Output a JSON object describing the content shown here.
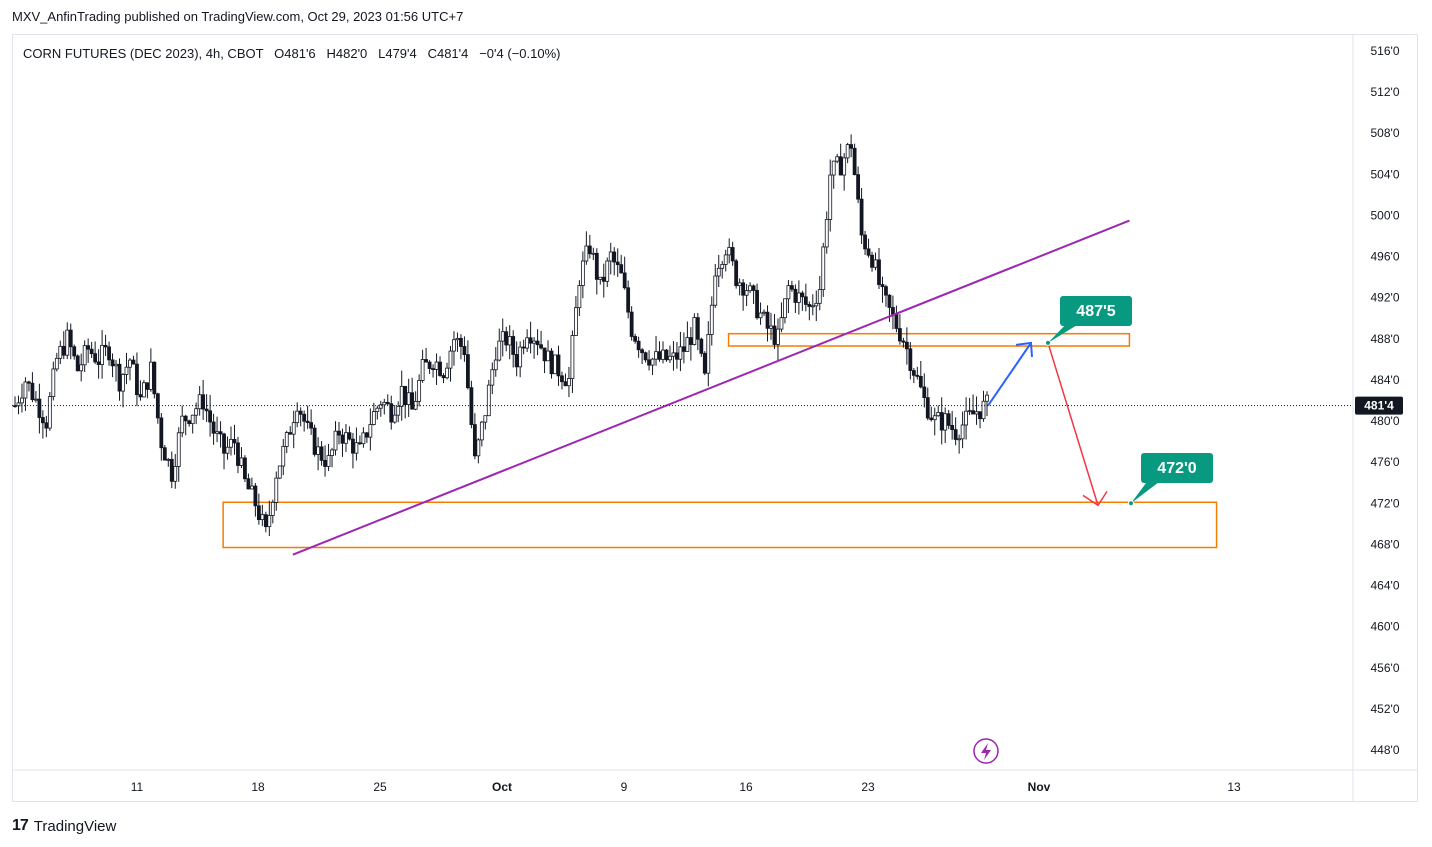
{
  "header": {
    "published": "MXV_AnfinTrading published on TradingView.com, Oct 29, 2023 01:56 UTC+7"
  },
  "footer": {
    "brand": "TradingView"
  },
  "chart_data": {
    "type": "candlestick",
    "legend": "CORN FUTURES (DEC 2023), 4h, CBOT   O481'6   H482'0   L479'4   C481'4   −0'4 (−0.10%)",
    "y_ticks": [
      "516'0",
      "512'0",
      "508'0",
      "504'0",
      "500'0",
      "496'0",
      "492'0",
      "488'0",
      "484'0",
      "480'0",
      "476'0",
      "472'0",
      "468'0",
      "464'0",
      "460'0",
      "456'0",
      "452'0",
      "448'0"
    ],
    "ylim": [
      446.5,
      517.5
    ],
    "x_ticks": [
      "11",
      "18",
      "25",
      "Oct",
      "9",
      "16",
      "23",
      "Nov",
      "13"
    ],
    "last_price_label": "481'4",
    "last_price": 481.5,
    "price_path": [
      [
        0,
        481.5
      ],
      [
        3,
        484
      ],
      [
        6,
        482
      ],
      [
        9,
        480
      ],
      [
        12,
        486
      ],
      [
        15,
        488
      ],
      [
        18,
        485
      ],
      [
        21,
        487
      ],
      [
        24,
        486
      ],
      [
        27,
        487
      ],
      [
        30,
        484
      ],
      [
        33,
        486
      ],
      [
        36,
        482
      ],
      [
        39,
        485
      ],
      [
        42,
        478
      ],
      [
        45,
        475
      ],
      [
        48,
        480
      ],
      [
        51,
        481
      ],
      [
        54,
        482
      ],
      [
        57,
        479
      ],
      [
        60,
        477
      ],
      [
        63,
        478
      ],
      [
        66,
        474
      ],
      [
        69,
        472
      ],
      [
        72,
        469
      ],
      [
        75,
        475
      ],
      [
        78,
        478
      ],
      [
        81,
        482
      ],
      [
        84,
        479
      ],
      [
        87,
        477
      ],
      [
        90,
        476
      ],
      [
        93,
        479
      ],
      [
        96,
        478
      ],
      [
        99,
        477
      ],
      [
        102,
        480
      ],
      [
        105,
        482
      ],
      [
        108,
        481
      ],
      [
        111,
        483
      ],
      [
        114,
        481
      ],
      [
        117,
        485
      ],
      [
        120,
        486
      ],
      [
        123,
        485
      ],
      [
        126,
        488
      ],
      [
        129,
        487
      ],
      [
        132,
        476
      ],
      [
        135,
        481
      ],
      [
        138,
        487
      ],
      [
        141,
        488
      ],
      [
        144,
        486
      ],
      [
        147,
        489
      ],
      [
        150,
        488
      ],
      [
        153,
        486
      ],
      [
        156,
        485
      ],
      [
        159,
        484
      ],
      [
        162,
        494
      ],
      [
        165,
        497
      ],
      [
        168,
        493
      ],
      [
        171,
        496
      ],
      [
        174,
        494
      ],
      [
        177,
        489
      ],
      [
        180,
        487
      ],
      [
        183,
        486
      ],
      [
        186,
        486
      ],
      [
        189,
        486
      ],
      [
        192,
        487
      ],
      [
        195,
        489
      ],
      [
        198,
        484
      ],
      [
        201,
        495
      ],
      [
        204,
        497
      ],
      [
        207,
        494
      ],
      [
        210,
        493
      ],
      [
        213,
        491
      ],
      [
        216,
        489
      ],
      [
        219,
        488
      ],
      [
        222,
        493
      ],
      [
        225,
        492
      ],
      [
        228,
        491
      ],
      [
        231,
        493
      ],
      [
        234,
        504
      ],
      [
        237,
        505
      ],
      [
        240,
        507
      ],
      [
        243,
        498
      ],
      [
        246,
        496
      ],
      [
        249,
        492
      ],
      [
        252,
        490
      ],
      [
        255,
        488
      ],
      [
        258,
        485
      ],
      [
        261,
        482
      ],
      [
        264,
        480
      ],
      [
        267,
        480
      ],
      [
        270,
        479
      ],
      [
        273,
        480
      ],
      [
        276,
        481
      ],
      [
        279,
        481.5
      ]
    ],
    "trendline": {
      "from": [
        "2023-09-20",
        467.0
      ],
      "to": [
        "2023-11-07",
        499.5
      ],
      "color": "#9c27b0"
    },
    "zones": [
      {
        "name": "resistance",
        "from": "2023-10-15",
        "to": "2023-11-07",
        "low": 487.3,
        "high": 488.5,
        "color": "#f57c00"
      },
      {
        "name": "support",
        "from": "2023-09-16",
        "to": "2023-11-12",
        "low": 467.7,
        "high": 472.1,
        "color": "#f57c00"
      }
    ],
    "projection": {
      "up_to": 487.6,
      "down_to": 471.8,
      "up_color": "#2962ff",
      "down_color": "#f23645"
    },
    "callouts": [
      {
        "text": "487'5",
        "value": 487.6,
        "color": "#089981"
      },
      {
        "text": "472'0",
        "value": 472.0,
        "color": "#089981"
      }
    ],
    "colors": {
      "up": "#ffffff",
      "down": "#131722",
      "grid": "#e0e3eb",
      "axis_text": "#131722"
    }
  }
}
